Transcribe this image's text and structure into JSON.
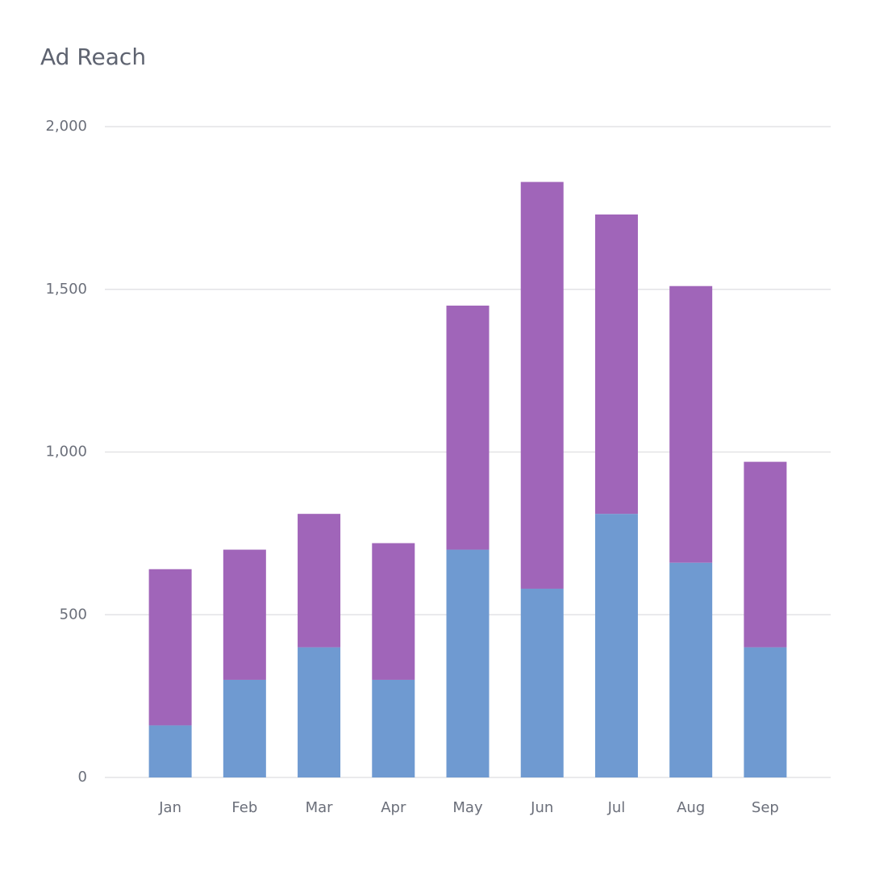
{
  "chart_data": {
    "type": "stacked_bar",
    "title": "Ad Reach",
    "categories": [
      "Jan",
      "Feb",
      "Mar",
      "Apr",
      "May",
      "Jun",
      "Jul",
      "Aug",
      "Sep"
    ],
    "series": [
      {
        "color": "#6f9ad1",
        "values": [
          160,
          300,
          400,
          300,
          700,
          580,
          810,
          660,
          400
        ]
      },
      {
        "color": "#a065b9",
        "values": [
          480,
          400,
          410,
          420,
          750,
          1250,
          920,
          850,
          570
        ]
      }
    ],
    "ylim": [
      0,
      2000
    ],
    "yticks": [
      0,
      500,
      {
        "value": 1000,
        "label": "1,000"
      },
      {
        "value": 1500,
        "label": "1,500"
      },
      {
        "value": 2000,
        "label": "2,000"
      }
    ],
    "grid": true
  }
}
